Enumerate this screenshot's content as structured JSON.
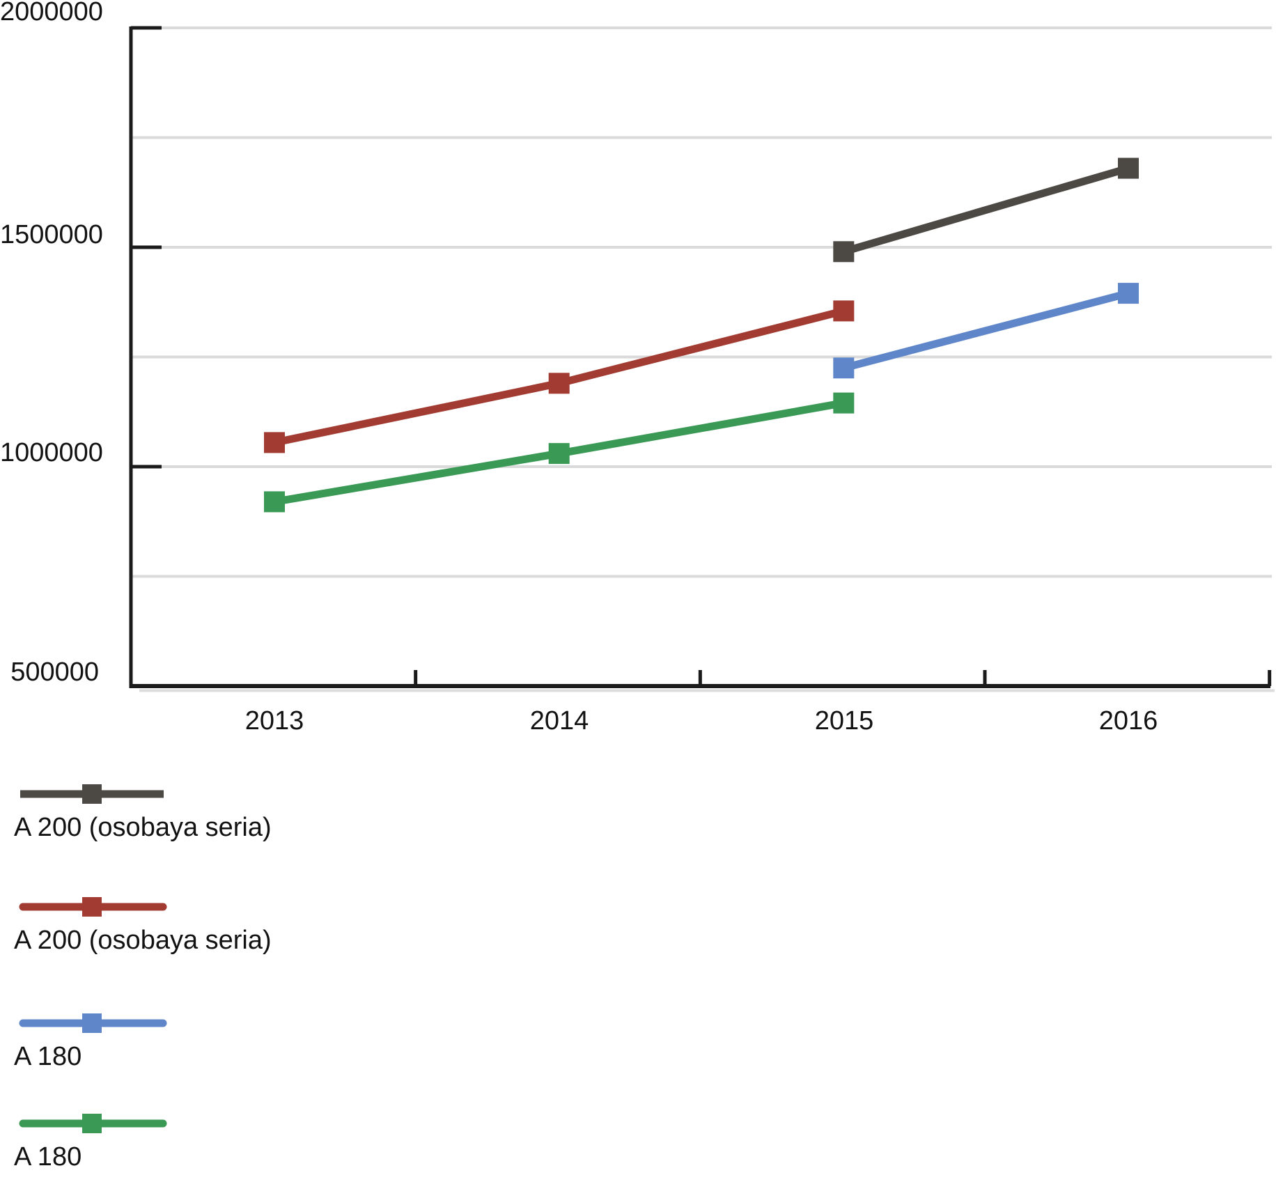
{
  "chart_data": {
    "type": "line",
    "title": "",
    "xlabel": "",
    "ylabel": "",
    "categories": [
      "2013",
      "2014",
      "2015",
      "2016"
    ],
    "series": [
      {
        "name": "A 200 (osobaya seria)",
        "color": "#4C4843",
        "line_cap": "butt",
        "marker": "square",
        "values": [
          null,
          null,
          1490000,
          1680000
        ]
      },
      {
        "name": "A 200 (osobaya seria)",
        "color": "#A23B31",
        "line_cap": "round",
        "marker": "square",
        "values": [
          1055000,
          1190000,
          1355000,
          null
        ]
      },
      {
        "name": "A 180",
        "color": "#5E86C9",
        "line_cap": "round",
        "marker": "square",
        "values": [
          null,
          null,
          1225000,
          1395000
        ]
      },
      {
        "name": "A 180",
        "color": "#3A9A55",
        "line_cap": "round",
        "marker": "square",
        "values": [
          920000,
          1030000,
          1145000,
          null
        ]
      }
    ],
    "ylim": [
      500000,
      2000000
    ],
    "y_tick_values": [
      2000000,
      1500000,
      1000000,
      500000
    ],
    "y_tick_labels": [
      "2000000",
      "1500000",
      "1000000",
      "500000"
    ],
    "gridline_values": [
      2000000,
      1750000,
      1500000,
      1250000,
      1000000,
      750000
    ],
    "grid": true,
    "legend_position": "bottom-left",
    "colors": {
      "axis": "#1B1B1B",
      "gridline": "#DADADA",
      "background": "#FFFFFF",
      "text": "#121212"
    }
  }
}
